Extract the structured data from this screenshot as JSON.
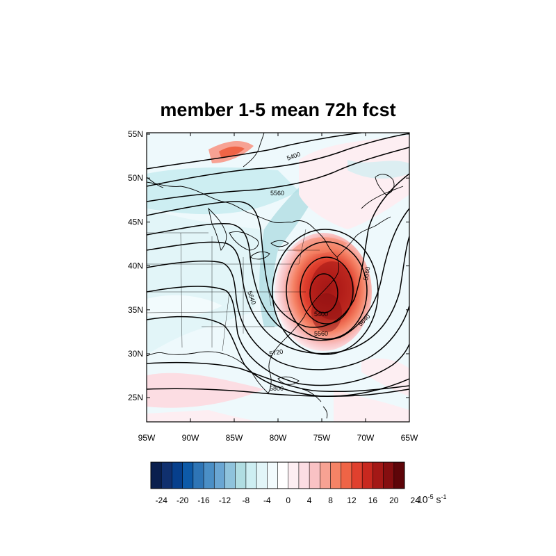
{
  "title": "member 1-5 mean 72h fcst",
  "map": {
    "lat_labels": [
      "55N",
      "50N",
      "45N",
      "40N",
      "35N",
      "30N",
      "25N"
    ],
    "lon_labels": [
      "95W",
      "90W",
      "85W",
      "80W",
      "75W",
      "70W",
      "65W"
    ],
    "lat_range": [
      22,
      55
    ],
    "lon_range": [
      -95,
      -65
    ],
    "contour_labels": [
      "5400",
      "5560",
      "5640",
      "5720",
      "5800",
      "5400",
      "5560",
      "5560",
      "5640",
      "5720"
    ]
  },
  "colorbar": {
    "tick_labels": [
      "-24",
      "-20",
      "-16",
      "-12",
      "-8",
      "-4",
      "0",
      "4",
      "8",
      "12",
      "16",
      "20",
      "24"
    ],
    "units_base": "10",
    "units_exp": "-5",
    "units_mid": " s",
    "units_exp2": "-1",
    "colors": [
      "#0a1f4e",
      "#10306e",
      "#063f8c",
      "#0d5aa8",
      "#2e75b6",
      "#4b8fc6",
      "#6aa6d3",
      "#8fc3dc",
      "#b0dde2",
      "#cdeef2",
      "#e2f5f8",
      "#f2fbfd",
      "#ffffff",
      "#fdeef2",
      "#fcdde3",
      "#f9c2c4",
      "#f7a293",
      "#f58366",
      "#ef6446",
      "#e0402e",
      "#c8281f",
      "#a41816",
      "#850e10",
      "#5e0509"
    ]
  }
}
